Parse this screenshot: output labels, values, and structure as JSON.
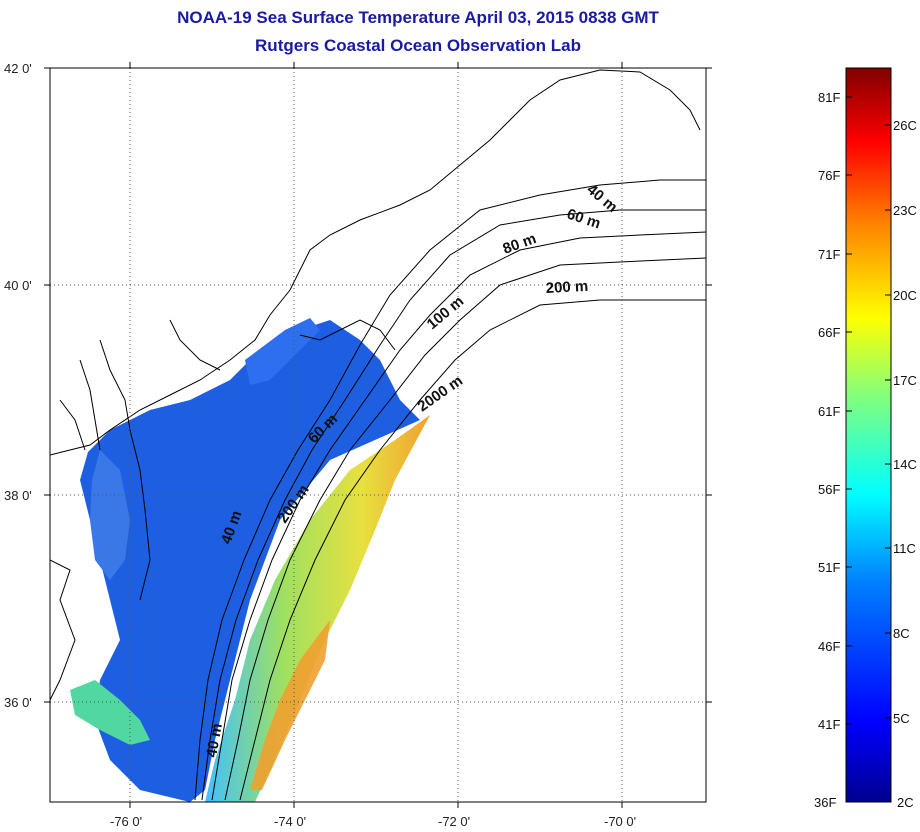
{
  "title": "NOAA-19 Sea Surface Temperature April 03, 2015 0838 GMT",
  "subtitle": "Rutgers Coastal Ocean Observation Lab",
  "map": {
    "lat_ticks": [
      "42 0'",
      "40 0'",
      "38 0'",
      "36 0'"
    ],
    "lon_ticks": [
      "-76 0'",
      "-74 0'",
      "-72 0'",
      "-70 0'"
    ],
    "lat_range": [
      35,
      42
    ],
    "lon_range": [
      -77,
      -69
    ],
    "grid": "dotted",
    "contour_labels": [
      "40 m",
      "60 m",
      "80 m",
      "200 m",
      "100 m",
      "2000 m",
      "60 m",
      "200 m",
      "40 m",
      "40 m"
    ]
  },
  "colorbar": {
    "fahrenheit_labels": [
      "81F",
      "76F",
      "71F",
      "66F",
      "61F",
      "56F",
      "51F",
      "46F",
      "41F",
      "36F"
    ],
    "celsius_labels": [
      "26C",
      "23C",
      "20C",
      "17C",
      "14C",
      "11C",
      "8C",
      "5C",
      "2C"
    ],
    "colors": [
      "#00008f",
      "#0000ff",
      "#0080ff",
      "#00ffff",
      "#80ff80",
      "#ffff00",
      "#ff8000",
      "#ff0000",
      "#800000"
    ]
  }
}
